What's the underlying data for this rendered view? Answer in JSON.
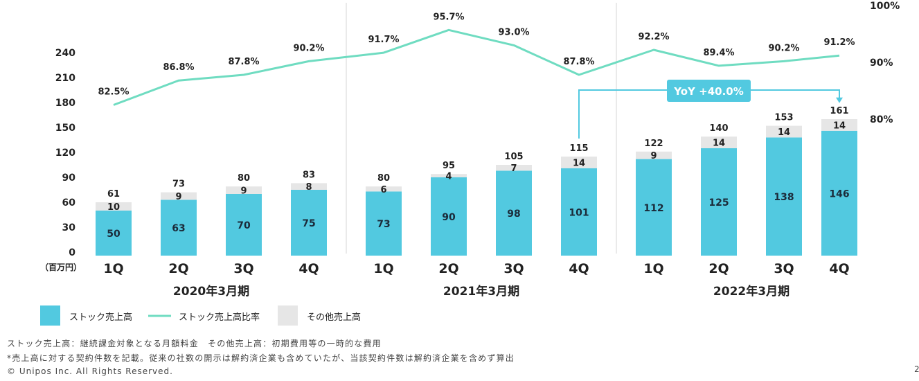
{
  "chart_data": {
    "type": "bar",
    "unit_label": "（百万円）",
    "quarters": [
      "1Q",
      "2Q",
      "3Q",
      "4Q",
      "1Q",
      "2Q",
      "3Q",
      "4Q",
      "1Q",
      "2Q",
      "3Q",
      "4Q"
    ],
    "periods": [
      "2020年3月期",
      "2021年3月期",
      "2022年3月期"
    ],
    "series": [
      {
        "name": "ストック売上高",
        "values": [
          50,
          63,
          70,
          75,
          73,
          90,
          98,
          101,
          112,
          125,
          138,
          146
        ],
        "color": "#52c9e0"
      },
      {
        "name": "その他売上高",
        "values": [
          10,
          9,
          9,
          8,
          6,
          4,
          7,
          14,
          9,
          14,
          14,
          14
        ],
        "color": "#e6e6e6"
      },
      {
        "name": "ストック売上高比率",
        "values": [
          82.5,
          86.8,
          87.8,
          90.2,
          91.7,
          95.7,
          93.0,
          87.8,
          92.2,
          89.4,
          90.2,
          91.2
        ],
        "color": "#6fdcc1"
      }
    ],
    "totals": [
      61,
      73,
      80,
      83,
      80,
      95,
      105,
      115,
      122,
      140,
      153,
      161
    ],
    "ratio_labels": [
      "82.5%",
      "86.8%",
      "87.8%",
      "90.2%",
      "91.7%",
      "95.7%",
      "93.0%",
      "87.8%",
      "92.2%",
      "89.4%",
      "90.2%",
      "91.2%"
    ],
    "y_left": {
      "ticks": [
        "0",
        "30",
        "60",
        "90",
        "120",
        "150",
        "180",
        "210",
        "240"
      ],
      "range": [
        0,
        240
      ]
    },
    "y_right": {
      "ticks": [
        "80%",
        "90%",
        "100%"
      ],
      "range": [
        80,
        100
      ]
    },
    "annotation": {
      "text": "YoY +40.0%",
      "from_index": 7,
      "to_index": 11,
      "color": "#52c9e0"
    }
  },
  "legend": {
    "stock": "ストック売上高",
    "ratio": "ストック売上高比率",
    "other": "その他売上高"
  },
  "footer": {
    "note1": "ストック売上高：継続課金対象となる月額料金　その他売上高：初期費用等の一時的な費用",
    "note2": "*売上高に対する契約件数を記載。従来の社数の開示は解約済企業も含めていたが、当該契約件数は解約済企業を含めず算出",
    "copyright": "© Unipos Inc. All Rights Reserved.",
    "page": "2"
  }
}
